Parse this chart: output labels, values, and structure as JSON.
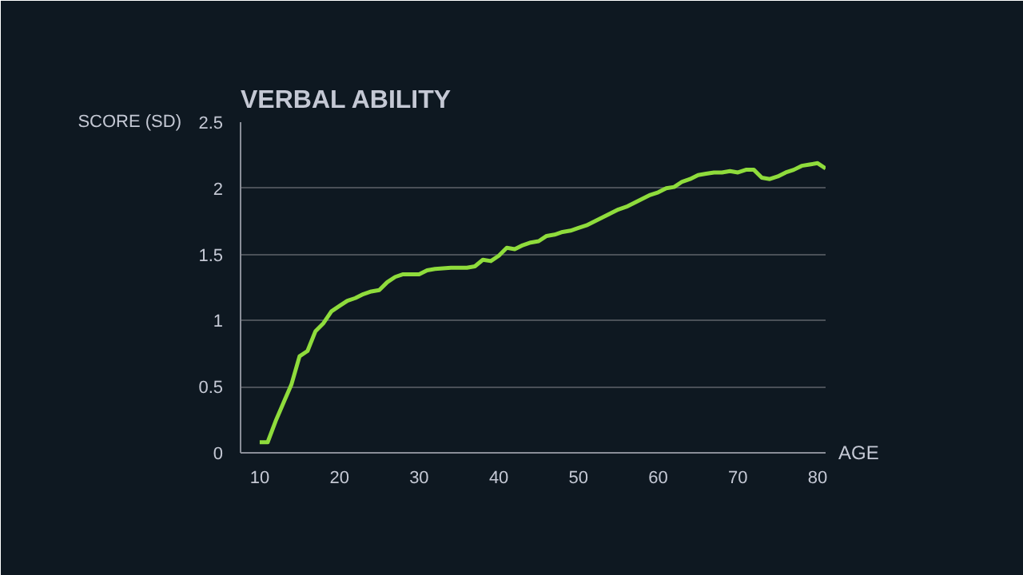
{
  "chart_data": {
    "type": "line",
    "title": "VERBAL ABILITY",
    "xlabel": "AGE",
    "ylabel": "SCORE (SD)",
    "x": [
      10,
      11,
      12,
      13,
      14,
      15,
      16,
      17,
      18,
      19,
      20,
      21,
      22,
      23,
      24,
      25,
      26,
      27,
      28,
      29,
      30,
      31,
      32,
      34,
      36,
      37,
      38,
      39,
      40,
      41,
      42,
      43,
      44,
      45,
      46,
      47,
      48,
      49,
      50,
      51,
      52,
      53,
      54,
      55,
      56,
      57,
      58,
      59,
      60,
      61,
      62,
      63,
      64,
      65,
      66,
      67,
      68,
      69,
      70,
      71,
      72,
      73,
      74,
      75,
      76,
      77,
      78,
      79,
      80,
      81
    ],
    "series": [
      {
        "color": "#8fdc3c",
        "values": [
          0.08,
          0.08,
          0.24,
          0.38,
          0.52,
          0.73,
          0.77,
          0.92,
          0.98,
          1.07,
          1.11,
          1.15,
          1.17,
          1.2,
          1.22,
          1.23,
          1.29,
          1.33,
          1.35,
          1.35,
          1.35,
          1.38,
          1.39,
          1.4,
          1.4,
          1.41,
          1.46,
          1.45,
          1.49,
          1.55,
          1.54,
          1.57,
          1.59,
          1.6,
          1.64,
          1.65,
          1.67,
          1.68,
          1.7,
          1.72,
          1.75,
          1.78,
          1.81,
          1.84,
          1.86,
          1.89,
          1.92,
          1.95,
          1.97,
          2.0,
          2.01,
          2.05,
          2.07,
          2.1,
          2.11,
          2.12,
          2.12,
          2.13,
          2.12,
          2.14,
          2.14,
          2.08,
          2.07,
          2.09,
          2.12,
          2.14,
          2.17,
          2.18,
          2.19,
          2.15
        ]
      }
    ],
    "xlim": [
      7.6,
      81
    ],
    "ylim": [
      0,
      2.5
    ],
    "xticks": [
      10,
      20,
      30,
      40,
      50,
      60,
      70,
      80
    ],
    "yticks": [
      0,
      0.5,
      1,
      1.5,
      2,
      2.5
    ],
    "grid": "y",
    "marker": "none",
    "line_style": "solid"
  }
}
